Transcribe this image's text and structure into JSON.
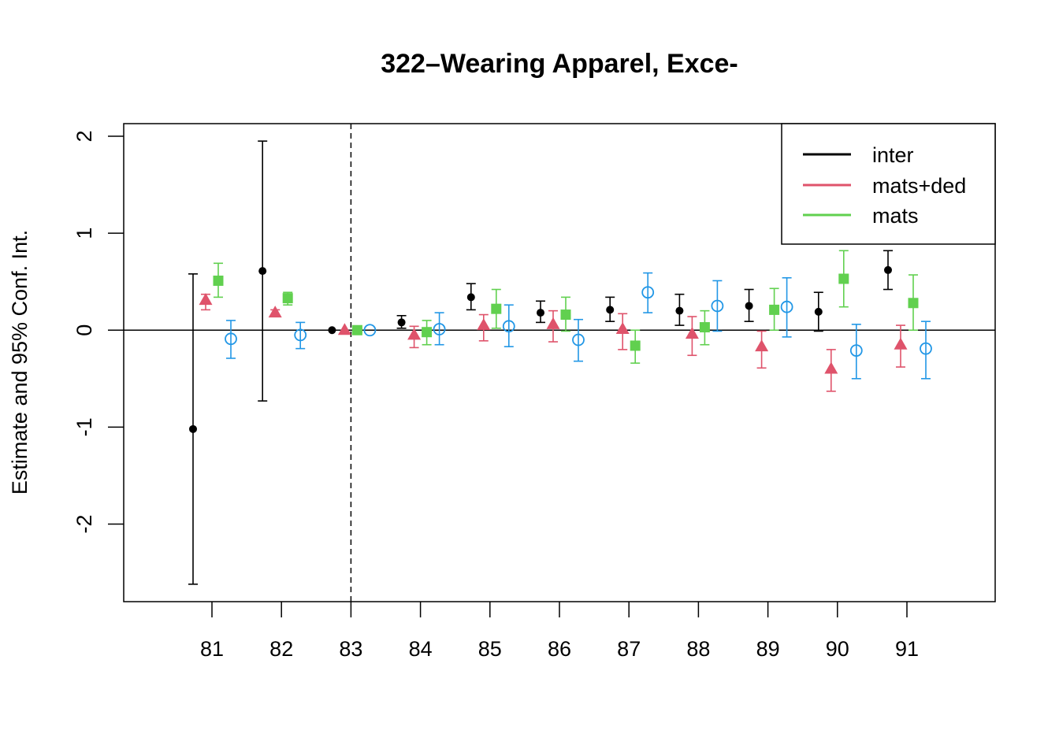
{
  "chart_data": {
    "type": "scatter",
    "title": "322–Wearing Apparel, Exce-",
    "xlabel": "",
    "ylabel": "Estimate and 95% Conf. Int.",
    "categories": [
      "81",
      "82",
      "83",
      "84",
      "85",
      "86",
      "87",
      "88",
      "89",
      "90",
      "91"
    ],
    "ylim": [
      -2.8,
      2.13
    ],
    "yticks": [
      -2,
      -1,
      0,
      1,
      2
    ],
    "ytick_labels": [
      "-2",
      "-1",
      "0",
      "1",
      "2"
    ],
    "reference_line_y": 0,
    "reference_line_x_category": "83",
    "grid": false,
    "legend_position": "top-right",
    "legend": [
      "inter",
      "mats+ded",
      "mats"
    ],
    "series": [
      {
        "name": "inter",
        "color": "#000000",
        "marker": "filled-circle",
        "values": [
          -1.02,
          0.61,
          0.0,
          0.08,
          0.34,
          0.18,
          0.21,
          0.2,
          0.25,
          0.19,
          0.62
        ],
        "lower": [
          -2.62,
          -0.73,
          null,
          0.02,
          0.21,
          0.08,
          0.09,
          0.05,
          0.09,
          -0.01,
          0.42
        ],
        "upper": [
          0.58,
          1.95,
          null,
          0.15,
          0.48,
          0.3,
          0.34,
          0.37,
          0.42,
          0.39,
          0.82
        ]
      },
      {
        "name": "mats+ded",
        "color": "#DF536B",
        "marker": "filled-triangle",
        "values": [
          0.31,
          0.18,
          0.0,
          -0.05,
          0.05,
          0.06,
          0.01,
          -0.04,
          -0.17,
          -0.4,
          -0.15
        ],
        "lower": [
          0.21,
          0.14,
          null,
          -0.18,
          -0.11,
          -0.12,
          -0.2,
          -0.26,
          -0.39,
          -0.63,
          -0.38
        ],
        "upper": [
          0.37,
          0.21,
          null,
          0.04,
          0.16,
          0.2,
          0.17,
          0.14,
          -0.01,
          -0.2,
          0.05
        ]
      },
      {
        "name": "mats",
        "color": "#61D04F",
        "marker": "filled-square",
        "values": [
          0.51,
          0.33,
          0.0,
          -0.02,
          0.22,
          0.16,
          -0.16,
          0.03,
          0.21,
          0.53,
          0.28
        ],
        "lower": [
          0.34,
          0.26,
          null,
          -0.15,
          0.02,
          -0.01,
          -0.34,
          -0.15,
          0.0,
          0.24,
          0.0
        ],
        "upper": [
          0.69,
          0.39,
          null,
          0.1,
          0.42,
          0.34,
          0.0,
          0.2,
          0.43,
          0.82,
          0.57
        ]
      },
      {
        "color": "#2297E6",
        "marker": "open-circle",
        "values": [
          -0.09,
          -0.05,
          0.0,
          0.01,
          0.04,
          -0.1,
          0.39,
          0.25,
          0.24,
          -0.21,
          -0.19
        ],
        "lower": [
          -0.29,
          -0.19,
          null,
          -0.15,
          -0.17,
          -0.32,
          0.18,
          -0.01,
          -0.07,
          -0.5,
          -0.5
        ],
        "upper": [
          0.1,
          0.08,
          null,
          0.18,
          0.26,
          0.11,
          0.59,
          0.51,
          0.54,
          0.06,
          0.09
        ]
      }
    ]
  }
}
